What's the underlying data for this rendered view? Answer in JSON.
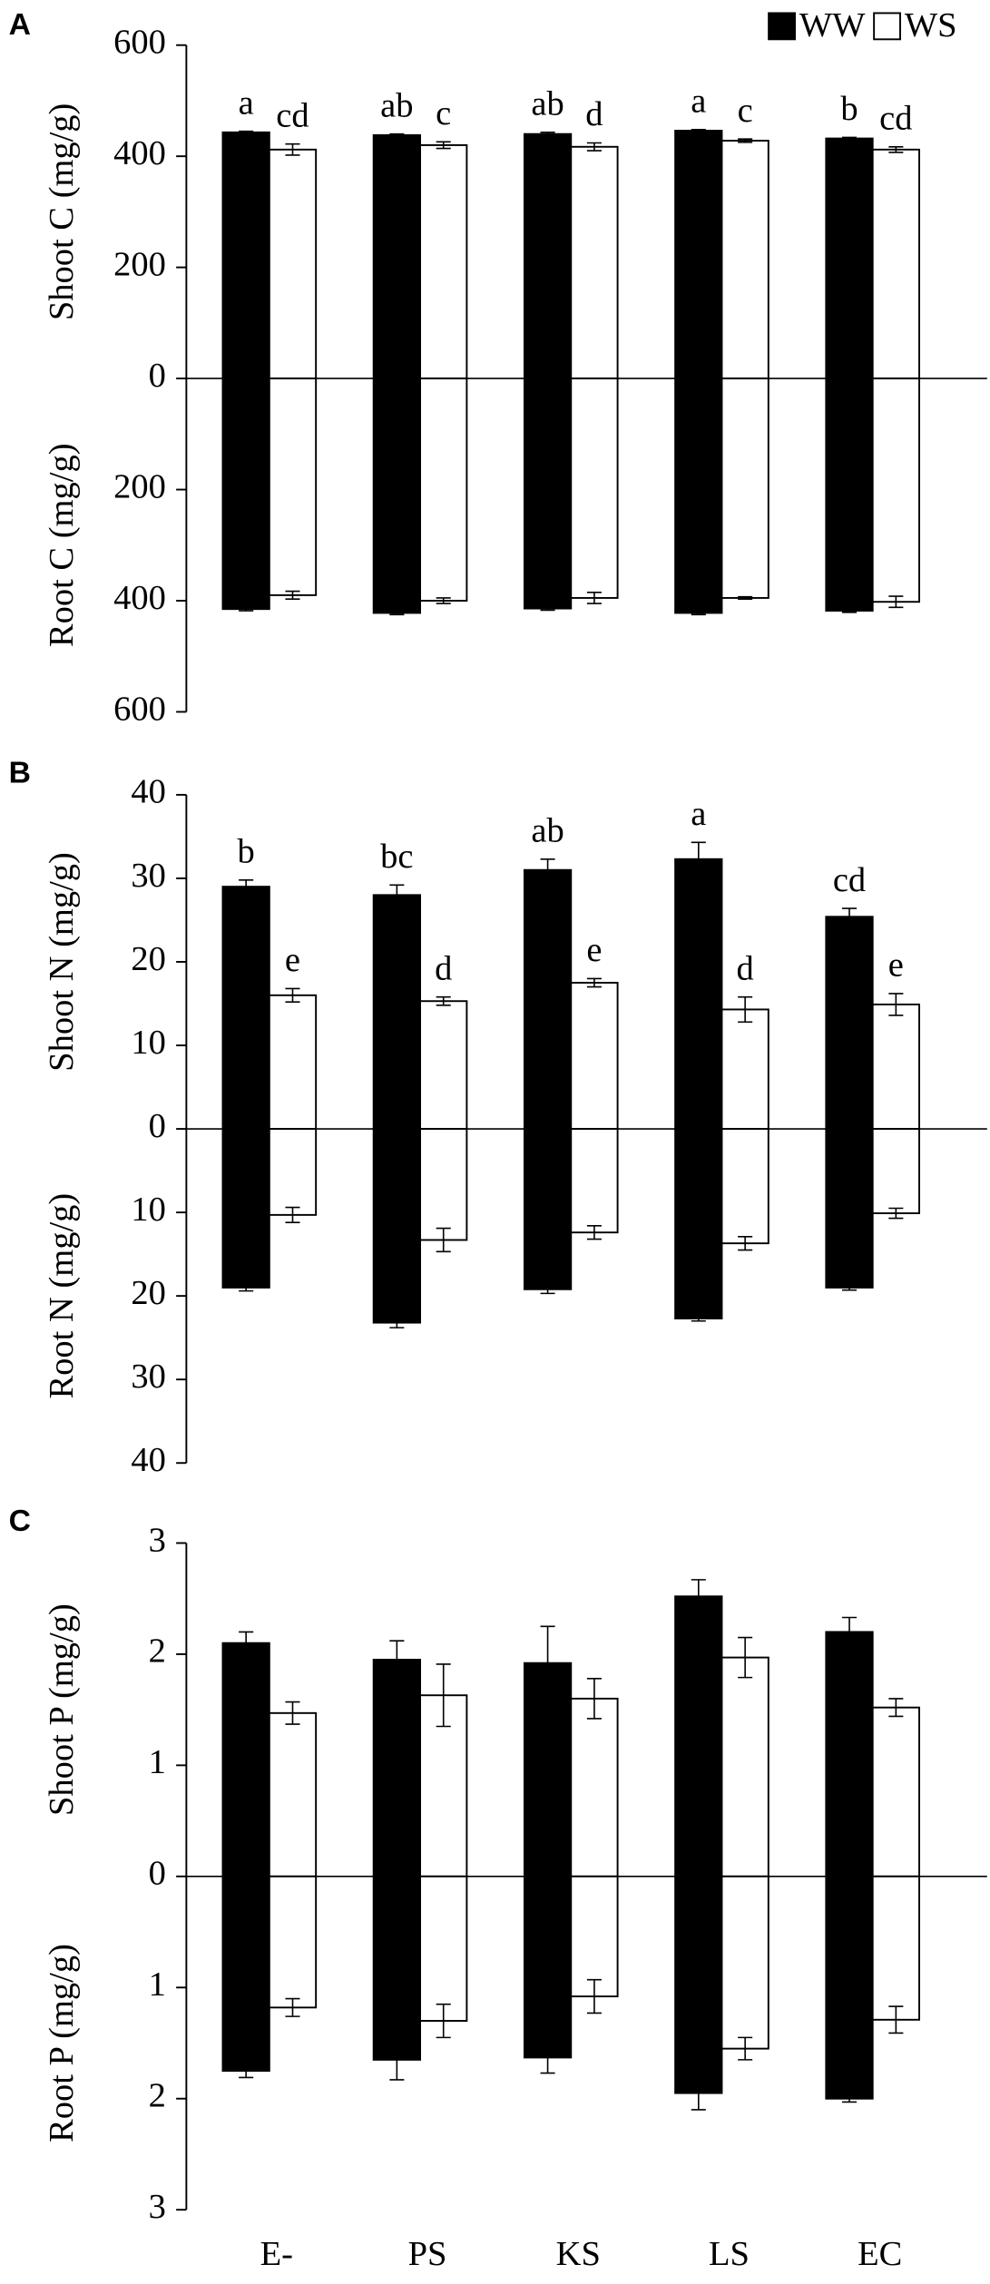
{
  "chart_data": [
    {
      "type": "bar",
      "panel": "A",
      "shoot_label": "Shoot C (mg/g)",
      "root_label": "Root C (mg/g)",
      "legend": "top-right",
      "ylim": [
        -600,
        600
      ],
      "yticks": [
        {
          "value": -600,
          "label": "600"
        },
        {
          "value": -400,
          "label": "400"
        },
        {
          "value": -200,
          "label": "200"
        },
        0,
        200,
        400,
        600
      ],
      "series": [
        {
          "name": "WW",
          "color": "#000000",
          "values": [
            443,
            438,
            440,
            446,
            432
          ],
          "errors": [
            2,
            2,
            3,
            2,
            2
          ],
          "root_values": [
            -415,
            -422,
            -414,
            -422,
            -418
          ],
          "root_errors": [
            3,
            3,
            3,
            3,
            3
          ],
          "letters": [
            "a",
            "ab",
            "ab",
            "a",
            "b"
          ]
        },
        {
          "name": "WS",
          "color": "#ffffff",
          "values": [
            412,
            420,
            417,
            428,
            412
          ],
          "errors": [
            10,
            6,
            7,
            3,
            5
          ],
          "root_values": [
            -390,
            -400,
            -395,
            -395,
            -402
          ],
          "root_errors": [
            7,
            5,
            10,
            2,
            10
          ],
          "letters": [
            "cd",
            "c",
            "d",
            "c",
            "cd"
          ]
        }
      ]
    },
    {
      "type": "bar",
      "panel": "B",
      "shoot_label": "Shoot N (mg/g)",
      "root_label": "Root N (mg/g)",
      "ylim": [
        -40,
        40
      ],
      "yticks": [
        {
          "value": -40,
          "label": "40"
        },
        {
          "value": -30,
          "label": "30"
        },
        {
          "value": -20,
          "label": "20"
        },
        {
          "value": -10,
          "label": "10"
        },
        0,
        10,
        20,
        30,
        40
      ],
      "series": [
        {
          "name": "WW",
          "color": "#000000",
          "values": [
            29,
            28,
            31,
            32.3,
            25.4
          ],
          "errors": [
            0.8,
            1.2,
            1.3,
            2,
            1
          ],
          "root_values": [
            -19,
            -23.2,
            -19.2,
            -22.7,
            -19
          ],
          "root_errors": [
            0.4,
            0.6,
            0.5,
            0.3,
            0.3
          ],
          "letters": [
            "b",
            "bc",
            "ab",
            "a",
            "cd"
          ]
        },
        {
          "name": "WS",
          "color": "#ffffff",
          "values": [
            16,
            15.3,
            17.5,
            14.3,
            14.9
          ],
          "errors": [
            0.8,
            0.5,
            0.5,
            1.5,
            1.3
          ],
          "root_values": [
            -10.3,
            -13.3,
            -12.4,
            -13.7,
            -10.1
          ],
          "root_errors": [
            0.9,
            1.4,
            0.8,
            0.8,
            0.6
          ],
          "letters": [
            "e",
            "d",
            "e",
            "d",
            "e"
          ]
        }
      ]
    },
    {
      "type": "bar",
      "panel": "C",
      "shoot_label": "Shoot P (mg/g)",
      "root_label": "Root P (mg/g)",
      "categories": [
        "E-",
        "PS",
        "KS",
        "LS",
        "EC"
      ],
      "ylim": [
        -3,
        3
      ],
      "yticks": [
        {
          "value": -3,
          "label": "3"
        },
        {
          "value": -2,
          "label": "2"
        },
        {
          "value": -1,
          "label": "1"
        },
        0,
        1,
        2,
        3
      ],
      "series": [
        {
          "name": "WW",
          "color": "#000000",
          "values": [
            2.1,
            1.95,
            1.92,
            2.52,
            2.2
          ],
          "errors": [
            0.1,
            0.17,
            0.33,
            0.15,
            0.13
          ],
          "root_values": [
            -1.75,
            -1.65,
            -1.63,
            -1.95,
            -2.0
          ],
          "root_errors": [
            0.06,
            0.18,
            0.14,
            0.15,
            0.03
          ]
        },
        {
          "name": "WS",
          "color": "#ffffff",
          "values": [
            1.47,
            1.63,
            1.6,
            1.97,
            1.52
          ],
          "errors": [
            0.1,
            0.28,
            0.18,
            0.18,
            0.08
          ],
          "root_values": [
            -1.18,
            -1.3,
            -1.08,
            -1.55,
            -1.29
          ],
          "root_errors": [
            0.08,
            0.15,
            0.15,
            0.1,
            0.12
          ]
        }
      ]
    }
  ]
}
